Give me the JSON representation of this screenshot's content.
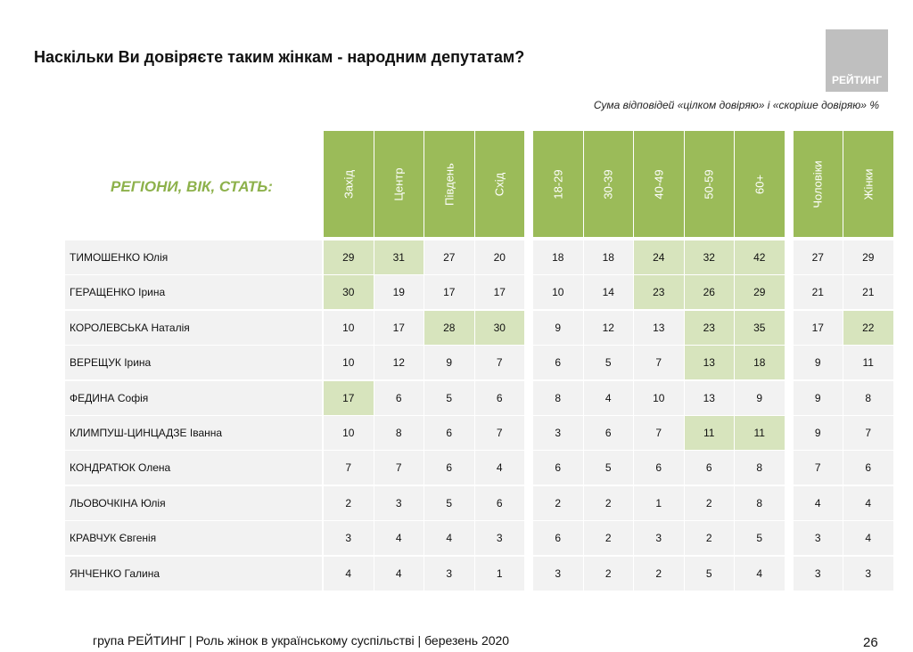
{
  "header": {
    "title": "Наскільки Ви довіряєте таким жінкам - народним депутатам?",
    "logo": "РЕЙТИНГ",
    "subtitle": "Сума відповідей «цілком довіряю» і «скоріше довіряю» %"
  },
  "table": {
    "label": "РЕГІОНИ, ВІК, СТАТЬ:",
    "column_groups": [
      {
        "columns": [
          "Захід",
          "Центр",
          "Південь",
          "Схід"
        ]
      },
      {
        "columns": [
          "18-29",
          "30-39",
          "40-49",
          "50-59",
          "60+"
        ]
      },
      {
        "columns": [
          "Чоловіки",
          "Жінки"
        ]
      }
    ],
    "rows": [
      {
        "name": "ТИМОШЕНКО Юлія",
        "values": [
          29,
          31,
          27,
          20,
          18,
          18,
          24,
          32,
          42,
          27,
          29
        ],
        "highlight": [
          true,
          true,
          false,
          false,
          false,
          false,
          true,
          true,
          true,
          false,
          false
        ]
      },
      {
        "name": "ГЕРАЩЕНКО Ірина",
        "values": [
          30,
          19,
          17,
          17,
          10,
          14,
          23,
          26,
          29,
          21,
          21
        ],
        "highlight": [
          true,
          false,
          false,
          false,
          false,
          false,
          true,
          true,
          true,
          false,
          false
        ]
      },
      {
        "name": "КОРОЛЕВСЬКА Наталія",
        "values": [
          10,
          17,
          28,
          30,
          9,
          12,
          13,
          23,
          35,
          17,
          22
        ],
        "highlight": [
          false,
          false,
          true,
          true,
          false,
          false,
          false,
          true,
          true,
          false,
          true
        ]
      },
      {
        "name": "ВЕРЕЩУК Ірина",
        "values": [
          10,
          12,
          9,
          7,
          6,
          5,
          7,
          13,
          18,
          9,
          11
        ],
        "highlight": [
          false,
          false,
          false,
          false,
          false,
          false,
          false,
          true,
          true,
          false,
          false
        ]
      },
      {
        "name": "ФЕДИНА Софія",
        "values": [
          17,
          6,
          5,
          6,
          8,
          4,
          10,
          13,
          9,
          9,
          8
        ],
        "highlight": [
          true,
          false,
          false,
          false,
          false,
          false,
          false,
          false,
          false,
          false,
          false
        ]
      },
      {
        "name": "КЛИМПУШ-ЦИНЦАДЗЕ Іванна",
        "values": [
          10,
          8,
          6,
          7,
          3,
          6,
          7,
          11,
          11,
          9,
          7
        ],
        "highlight": [
          false,
          false,
          false,
          false,
          false,
          false,
          false,
          true,
          true,
          false,
          false
        ]
      },
      {
        "name": "КОНДРАТЮК Олена",
        "values": [
          7,
          7,
          6,
          4,
          6,
          5,
          6,
          6,
          8,
          7,
          6
        ],
        "highlight": [
          false,
          false,
          false,
          false,
          false,
          false,
          false,
          false,
          false,
          false,
          false
        ]
      },
      {
        "name": "ЛЬОВОЧКІНА Юлія",
        "values": [
          2,
          3,
          5,
          6,
          2,
          2,
          1,
          2,
          8,
          4,
          4
        ],
        "highlight": [
          false,
          false,
          false,
          false,
          false,
          false,
          false,
          false,
          false,
          false,
          false
        ]
      },
      {
        "name": "КРАВЧУК Євгенія",
        "values": [
          3,
          4,
          4,
          3,
          6,
          2,
          3,
          2,
          5,
          3,
          4
        ],
        "highlight": [
          false,
          false,
          false,
          false,
          false,
          false,
          false,
          false,
          false,
          false,
          false
        ]
      },
      {
        "name": "ЯНЧЕНКО Галина",
        "values": [
          4,
          4,
          3,
          1,
          3,
          2,
          2,
          5,
          4,
          3,
          3
        ],
        "highlight": [
          false,
          false,
          false,
          false,
          false,
          false,
          false,
          false,
          false,
          false,
          false
        ]
      }
    ]
  },
  "footer": {
    "text": "група РЕЙТИНГ | Роль жінок в українському суспільстві | березень 2020",
    "page": "26"
  }
}
